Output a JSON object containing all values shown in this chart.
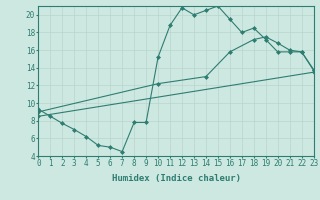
{
  "line1_x": [
    0,
    1,
    2,
    3,
    4,
    5,
    6,
    7,
    8,
    9,
    10,
    11,
    12,
    13,
    14,
    15,
    16,
    17,
    18,
    19,
    20,
    21,
    22,
    23
  ],
  "line1_y": [
    9.3,
    8.5,
    7.7,
    7.0,
    6.2,
    5.2,
    5.0,
    4.5,
    7.8,
    7.8,
    15.2,
    18.8,
    20.8,
    20.0,
    20.5,
    21.0,
    19.5,
    18.0,
    18.5,
    17.2,
    15.8,
    15.8,
    15.8,
    13.8
  ],
  "line2_x": [
    0,
    10,
    14,
    16,
    18,
    19,
    20,
    21,
    22,
    23
  ],
  "line2_y": [
    9.0,
    12.2,
    13.0,
    15.8,
    17.2,
    17.5,
    16.8,
    16.0,
    15.8,
    13.7
  ],
  "line3_x": [
    0,
    23
  ],
  "line3_y": [
    8.5,
    13.5
  ],
  "color": "#2e7d72",
  "bg_color": "#cde8e0",
  "grid_color": "#b8d5cc",
  "xlabel": "Humidex (Indice chaleur)",
  "xlim": [
    0,
    23
  ],
  "ylim": [
    4,
    21
  ],
  "xticks": [
    0,
    1,
    2,
    3,
    4,
    5,
    6,
    7,
    8,
    9,
    10,
    11,
    12,
    13,
    14,
    15,
    16,
    17,
    18,
    19,
    20,
    21,
    22,
    23
  ],
  "yticks": [
    4,
    6,
    8,
    10,
    12,
    14,
    16,
    18,
    20
  ],
  "label_fontsize": 6.5,
  "tick_fontsize": 5.5
}
